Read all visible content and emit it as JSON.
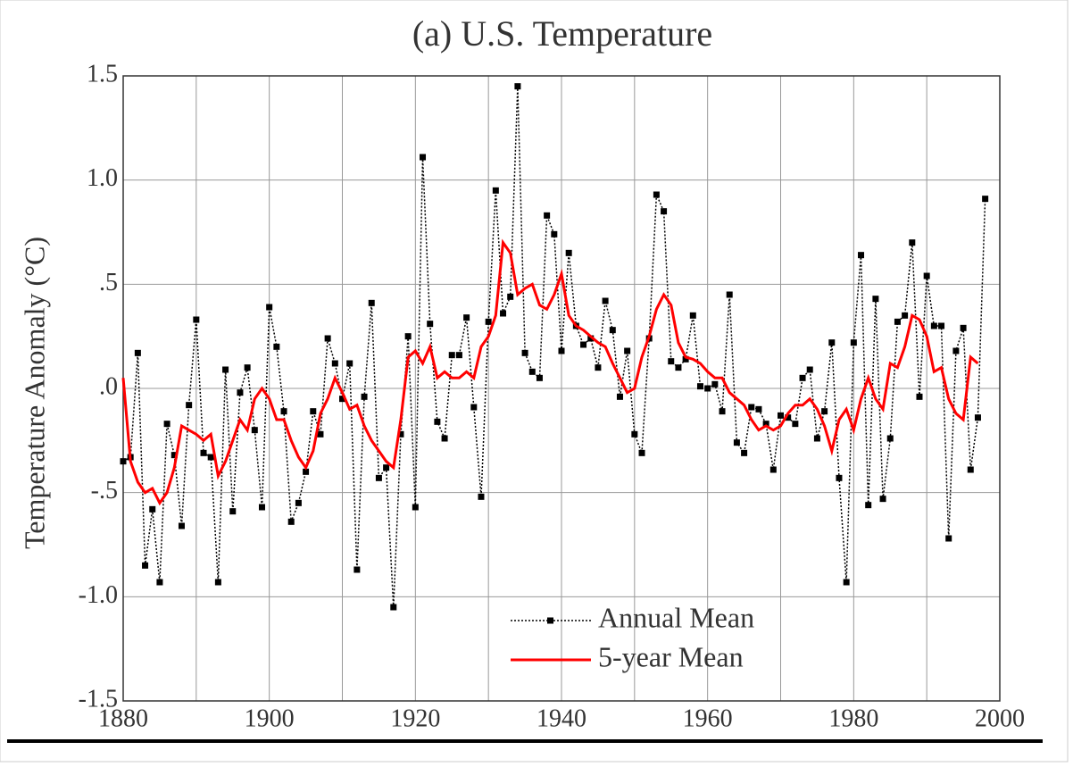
{
  "chart_data": {
    "type": "line",
    "title": "(a)  U.S. Temperature",
    "y_label": "Temperature Anomaly (°C)",
    "x": [
      1880,
      1881,
      1882,
      1883,
      1884,
      1885,
      1886,
      1887,
      1888,
      1889,
      1890,
      1891,
      1892,
      1893,
      1894,
      1895,
      1896,
      1897,
      1898,
      1899,
      1900,
      1901,
      1902,
      1903,
      1904,
      1905,
      1906,
      1907,
      1908,
      1909,
      1910,
      1911,
      1912,
      1913,
      1914,
      1915,
      1916,
      1917,
      1918,
      1919,
      1920,
      1921,
      1922,
      1923,
      1924,
      1925,
      1926,
      1927,
      1928,
      1929,
      1930,
      1931,
      1932,
      1933,
      1934,
      1935,
      1936,
      1937,
      1938,
      1939,
      1940,
      1941,
      1942,
      1943,
      1944,
      1945,
      1946,
      1947,
      1948,
      1949,
      1950,
      1951,
      1952,
      1953,
      1954,
      1955,
      1956,
      1957,
      1958,
      1959,
      1960,
      1961,
      1962,
      1963,
      1964,
      1965,
      1966,
      1967,
      1968,
      1969,
      1970,
      1971,
      1972,
      1973,
      1974,
      1975,
      1976,
      1977,
      1978,
      1979,
      1980,
      1981,
      1982,
      1983,
      1984,
      1985,
      1986,
      1987,
      1988,
      1989,
      1990,
      1991,
      1992,
      1993,
      1994,
      1995,
      1996,
      1997,
      1998
    ],
    "series": [
      {
        "name": "Annual Mean",
        "color": "#000000",
        "style": "dotted-markers",
        "values": [
          -0.35,
          -0.33,
          0.17,
          -0.85,
          -0.58,
          -0.93,
          -0.17,
          -0.32,
          -0.66,
          -0.08,
          0.33,
          -0.31,
          -0.33,
          -0.93,
          0.09,
          -0.59,
          -0.02,
          0.1,
          -0.2,
          -0.57,
          0.39,
          0.2,
          -0.11,
          -0.64,
          -0.55,
          -0.4,
          -0.11,
          -0.22,
          0.24,
          0.12,
          -0.05,
          0.12,
          -0.87,
          -0.04,
          0.41,
          -0.43,
          -0.38,
          -1.05,
          -0.22,
          0.25,
          -0.57,
          1.11,
          0.31,
          -0.16,
          -0.24,
          0.16,
          0.16,
          0.34,
          -0.09,
          -0.52,
          0.32,
          0.95,
          0.36,
          0.44,
          1.45,
          0.17,
          0.08,
          0.05,
          0.83,
          0.74,
          0.18,
          0.65,
          0.3,
          0.21,
          0.24,
          0.1,
          0.42,
          0.28,
          -0.04,
          0.18,
          -0.22,
          -0.31,
          0.24,
          0.93,
          0.85,
          0.13,
          0.1,
          0.14,
          0.35,
          0.01,
          0.0,
          0.02,
          -0.11,
          0.45,
          -0.26,
          -0.31,
          -0.09,
          -0.1,
          -0.17,
          -0.39,
          -0.13,
          -0.14,
          -0.17,
          0.05,
          0.09,
          -0.24,
          -0.11,
          0.22,
          -0.43,
          -0.93,
          0.22,
          0.64,
          -0.56,
          0.43,
          -0.53,
          -0.24,
          0.32,
          0.35,
          0.7,
          -0.04,
          0.54,
          0.3,
          0.3,
          -0.72,
          0.18,
          0.29,
          -0.39,
          -0.14,
          0.91
        ]
      },
      {
        "name": "5-year Mean",
        "color": "#ff0000",
        "style": "solid",
        "values": [
          0.05,
          -0.35,
          -0.45,
          -0.5,
          -0.48,
          -0.55,
          -0.5,
          -0.38,
          -0.18,
          -0.2,
          -0.22,
          -0.25,
          -0.22,
          -0.42,
          -0.35,
          -0.25,
          -0.15,
          -0.2,
          -0.05,
          0.0,
          -0.05,
          -0.15,
          -0.15,
          -0.25,
          -0.33,
          -0.38,
          -0.3,
          -0.12,
          -0.05,
          0.05,
          -0.02,
          -0.1,
          -0.08,
          -0.18,
          -0.25,
          -0.3,
          -0.35,
          -0.38,
          -0.15,
          0.15,
          0.18,
          0.12,
          0.2,
          0.05,
          0.08,
          0.05,
          0.05,
          0.08,
          0.05,
          0.2,
          0.25,
          0.35,
          0.7,
          0.65,
          0.45,
          0.48,
          0.5,
          0.4,
          0.38,
          0.45,
          0.55,
          0.35,
          0.3,
          0.28,
          0.25,
          0.22,
          0.2,
          0.12,
          0.05,
          -0.02,
          0.0,
          0.15,
          0.25,
          0.38,
          0.45,
          0.4,
          0.22,
          0.15,
          0.14,
          0.12,
          0.08,
          0.05,
          0.05,
          -0.02,
          -0.05,
          -0.08,
          -0.15,
          -0.2,
          -0.18,
          -0.2,
          -0.18,
          -0.12,
          -0.08,
          -0.08,
          -0.05,
          -0.1,
          -0.18,
          -0.3,
          -0.15,
          -0.1,
          -0.2,
          -0.05,
          0.05,
          -0.05,
          -0.1,
          0.12,
          0.1,
          0.2,
          0.35,
          0.33,
          0.25,
          0.08,
          0.1,
          -0.05,
          -0.12,
          -0.15,
          0.15,
          0.12,
          null
        ]
      }
    ],
    "xlim": [
      1880,
      2000
    ],
    "ylim": [
      -1.5,
      1.5
    ],
    "xticks": [
      1880,
      1900,
      1920,
      1940,
      1960,
      1980,
      2000
    ],
    "xminorticks": [
      1890,
      1910,
      1930,
      1950,
      1970,
      1990
    ],
    "yticks": [
      -1.5,
      {
        "value": -1,
        "label": "-1.0"
      },
      {
        "value": -0.5,
        "label": "-.5"
      },
      {
        "value": 0,
        "label": ".0"
      },
      {
        "value": 0.5,
        "label": ".5"
      },
      {
        "value": 1,
        "label": "1.0"
      },
      1.5
    ],
    "grid": true,
    "legend": "lower right"
  }
}
